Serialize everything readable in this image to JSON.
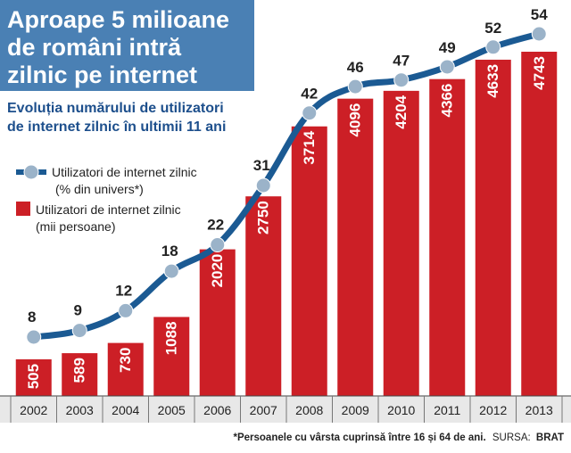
{
  "header": {
    "title_lines": [
      "Aproape 5 milioane",
      "de români intră",
      "zilnic pe internet"
    ],
    "subtitle_lines": [
      "Evoluția numărului de utilizatori",
      "de internet zilnic în ultimii 11 ani"
    ]
  },
  "legend": {
    "line_label_1": "Utilizatori de internet zilnic",
    "line_label_2": "(% din univers*)",
    "bar_label_1": "Utilizatori de internet zilnic",
    "bar_label_2": "(mii persoane)"
  },
  "footnote": {
    "text": "*Persoanele cu vârsta cuprinsă între 16 și 64 de ani.",
    "source_label": "SURSA:",
    "source_value": "BRAT"
  },
  "colors": {
    "title_bg": "#4a80b4",
    "subtitle": "#1d4f8c",
    "bar": "#cc1f26",
    "line": "#1b5a93",
    "marker": "#9bb3c9",
    "axis_band": "#e8e8e8"
  },
  "chart_data": {
    "type": "bar",
    "categories": [
      "2002",
      "2003",
      "2004",
      "2005",
      "2006",
      "2007",
      "2008",
      "2009",
      "2010",
      "2011",
      "2012",
      "2013"
    ],
    "series": [
      {
        "name": "Utilizatori de internet zilnic (mii persoane)",
        "type": "bar",
        "values": [
          505,
          589,
          730,
          1088,
          2020,
          2750,
          3714,
          4096,
          4204,
          4366,
          4633,
          4743
        ]
      },
      {
        "name": "Utilizatori de internet zilnic (% din univers*)",
        "type": "line",
        "values": [
          8,
          9,
          12,
          18,
          22,
          31,
          42,
          46,
          47,
          49,
          52,
          54
        ]
      }
    ],
    "title": "Aproape 5 milioane de români intră zilnic pe internet",
    "subtitle": "Evoluția numărului de utilizatori de internet zilnic în ultimii 11 ani",
    "legend_position": "left",
    "grid": false
  }
}
